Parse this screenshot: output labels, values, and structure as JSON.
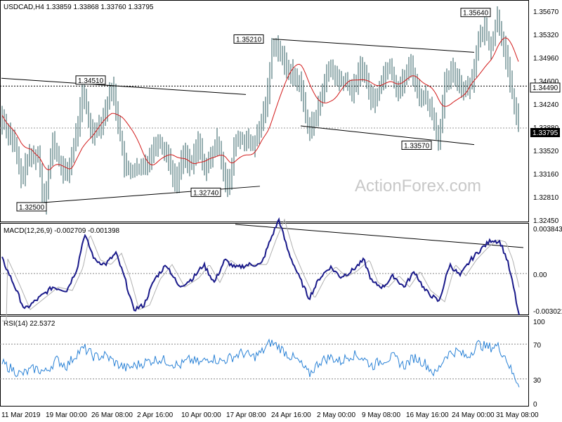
{
  "header": {
    "symbol_title": "USDCAD,H4  1.33859 1.33868 1.33760 1.33795"
  },
  "watermark": "ActionForex.com",
  "colors": {
    "candle": "#2e5d61",
    "ma_line": "#d21a1a",
    "macd_main": "#1a1a8a",
    "macd_signal": "#b0b0b0",
    "rsi_line": "#2a82d6",
    "trendline": "#000000",
    "watermark": "#c8c8c8"
  },
  "chart_data": [
    {
      "type": "candlestick",
      "panel": "price",
      "y_ticks": [
        "1.35670",
        "1.35320",
        "1.34960",
        "1.34600",
        "1.34240",
        "1.33880",
        "1.33520",
        "1.33160",
        "1.32810",
        "1.32450"
      ],
      "ylim": [
        1.3228,
        1.3587
      ],
      "current_price_label": "1.33795",
      "current_price": 1.33795,
      "level_label": "1.34490",
      "level": 1.3449,
      "annotations": [
        {
          "text": "1.32500",
          "value": 1.325
        },
        {
          "text": "1.34510",
          "value": 1.3451
        },
        {
          "text": "1.32740",
          "value": 1.3274
        },
        {
          "text": "1.35210",
          "value": 1.3521
        },
        {
          "text": "1.33570",
          "value": 1.3357
        },
        {
          "text": "1.35640",
          "value": 1.3564
        }
      ],
      "indicator": "moving average (red)"
    },
    {
      "type": "line",
      "panel": "macd",
      "title": "MACD(12,26,9) -0.002709 -0.001398",
      "y_ticks": [
        "0.003843",
        "0.00",
        "-0.003021"
      ],
      "ylim": [
        -0.0035,
        0.0043
      ],
      "series": [
        {
          "name": "MACD main"
        },
        {
          "name": "signal"
        }
      ]
    },
    {
      "type": "line",
      "panel": "rsi",
      "title": "RSI(14) 22.5372",
      "y_ticks": [
        "100",
        "70",
        "30",
        "0"
      ],
      "levels": [
        70,
        30
      ],
      "ylim": [
        0,
        100
      ],
      "last_value": 22.5372
    }
  ],
  "x_axis": {
    "labels": [
      "11 Mar 2019",
      "19 Mar 00:00",
      "26 Mar 08:00",
      "2 Apr 16:00",
      "10 Apr 00:00",
      "17 Apr 08:00",
      "24 Apr 16:00",
      "2 May 00:00",
      "9 May 08:00",
      "16 May 16:00",
      "24 May 00:00",
      "31 May 08:00"
    ]
  }
}
